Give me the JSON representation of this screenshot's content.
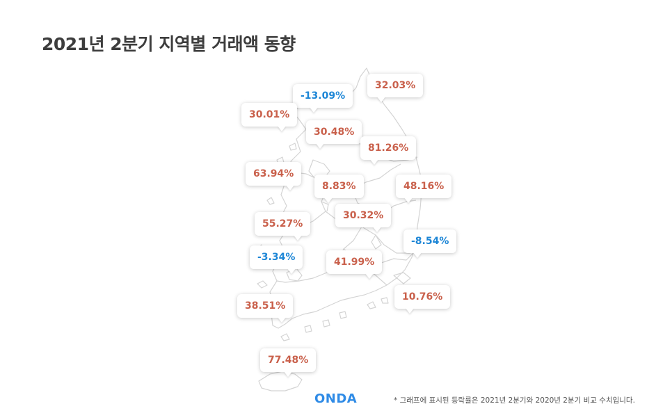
{
  "title": "2021년 2분기 지역별 거래액 동향",
  "logo": "ONDA",
  "footnote": "* 그래프에 표시된 등락률은 2021년 2분기와 2020년 2분기 비교 수치입니다.",
  "colors": {
    "increase": "#c9604b",
    "decrease": "#1d86d6",
    "map_stroke": "#d9d9d9"
  },
  "regions": [
    {
      "value": "-13.09%",
      "trend": "decrease"
    },
    {
      "value": "32.03%",
      "trend": "increase"
    },
    {
      "value": "30.01%",
      "trend": "increase"
    },
    {
      "value": "30.48%",
      "trend": "increase"
    },
    {
      "value": "81.26%",
      "trend": "increase"
    },
    {
      "value": "63.94%",
      "trend": "increase"
    },
    {
      "value": "8.83%",
      "trend": "increase"
    },
    {
      "value": "48.16%",
      "trend": "increase"
    },
    {
      "value": "55.27%",
      "trend": "increase"
    },
    {
      "value": "30.32%",
      "trend": "increase"
    },
    {
      "value": "-8.54%",
      "trend": "decrease"
    },
    {
      "value": "-3.34%",
      "trend": "decrease"
    },
    {
      "value": "41.99%",
      "trend": "increase"
    },
    {
      "value": "10.76%",
      "trend": "increase"
    },
    {
      "value": "38.51%",
      "trend": "increase"
    },
    {
      "value": "77.48%",
      "trend": "increase"
    }
  ]
}
